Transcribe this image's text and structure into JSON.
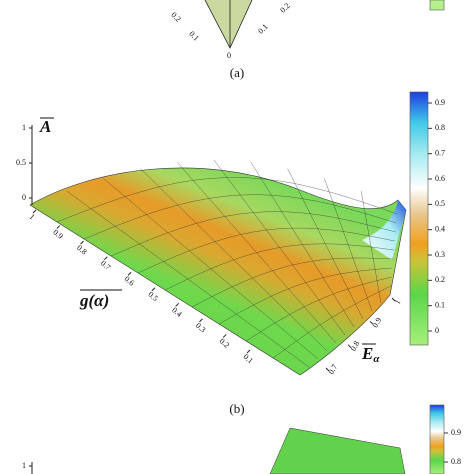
{
  "panel_a": {
    "label": "(a)",
    "tick_labels": [
      "0.2",
      "0.1",
      "0",
      "0.1",
      "0.2"
    ]
  },
  "panel_b": {
    "label": "(b)",
    "z_axis": {
      "title": "A",
      "ticks": [
        1,
        0.5,
        0
      ]
    },
    "x_axis": {
      "title": "g(α)",
      "ticks": [
        1,
        0.9,
        0.8,
        0.7,
        0.6,
        0.5,
        0.4,
        0.3,
        0.2,
        0.1
      ]
    },
    "y_axis": {
      "title": "E",
      "subscript": "α",
      "ticks": [
        1,
        0.9,
        0.8,
        0.7
      ]
    },
    "colorbar": {
      "ticks": [
        0,
        0.1,
        0.2,
        0.3,
        0.4,
        0.5,
        0.6,
        0.7,
        0.8,
        0.9
      ]
    }
  },
  "panel_c": {
    "colorbar": {
      "ticks": [
        0.8,
        0.9
      ]
    },
    "z_axis": {
      "ticks": [
        1
      ]
    }
  }
}
